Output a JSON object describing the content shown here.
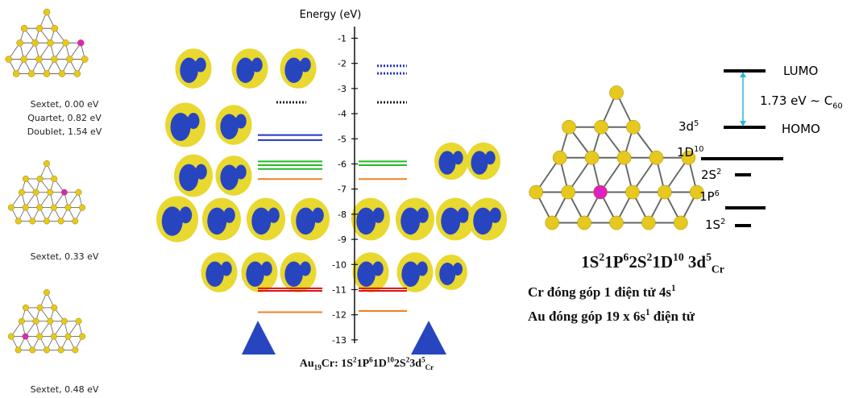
{
  "structures": [
    {
      "captions": [
        "Sextet, 0.00 eV",
        "Quartet, 0.82 eV",
        "Doublet, 1.54 eV"
      ]
    },
    {
      "captions": [
        "Sextet, 0.33 eV"
      ]
    },
    {
      "captions": [
        "Sextet, 0.48 eV"
      ]
    }
  ],
  "energy_diagram": {
    "axis_label": "Energy (eV)",
    "ylim": [
      -0.6,
      -13.1
    ],
    "ticks": [
      -1,
      -2,
      -3,
      -4,
      -5,
      -6,
      -7,
      -8,
      -9,
      -10,
      -11,
      -12,
      -13
    ],
    "levels": [
      {
        "side": "left",
        "energy": -3.55,
        "color": "#222222",
        "style": "dotted"
      },
      {
        "side": "left",
        "energy": -4.85,
        "color": "#2233cc",
        "style": "solid"
      },
      {
        "side": "left",
        "energy": -5.05,
        "color": "#2233cc",
        "style": "solid"
      },
      {
        "side": "left",
        "energy": -5.9,
        "color": "#22bb22",
        "style": "solid"
      },
      {
        "side": "left",
        "energy": -6.05,
        "color": "#22bb22",
        "style": "solid"
      },
      {
        "side": "left",
        "energy": -6.2,
        "color": "#22bb22",
        "style": "solid"
      },
      {
        "side": "left",
        "energy": -6.6,
        "color": "#f08020",
        "style": "solid"
      },
      {
        "side": "left",
        "energy": -10.95,
        "color": "#dd1111",
        "style": "solid"
      },
      {
        "side": "left",
        "energy": -11.05,
        "color": "#dd1111",
        "style": "solid"
      },
      {
        "side": "left",
        "energy": -11.9,
        "color": "#f08020",
        "style": "solid"
      },
      {
        "side": "right",
        "energy": -2.1,
        "color": "#2233cc",
        "style": "dotted"
      },
      {
        "side": "right",
        "energy": -2.4,
        "color": "#2233cc",
        "style": "dotted"
      },
      {
        "side": "right",
        "energy": -3.55,
        "color": "#222222",
        "style": "dotted"
      },
      {
        "side": "right",
        "energy": -5.9,
        "color": "#22bb22",
        "style": "solid"
      },
      {
        "side": "right",
        "energy": -6.05,
        "color": "#22bb22",
        "style": "solid"
      },
      {
        "side": "right",
        "energy": -6.6,
        "color": "#f08020",
        "style": "solid"
      },
      {
        "side": "right",
        "energy": -10.95,
        "color": "#dd1111",
        "style": "solid"
      },
      {
        "side": "right",
        "energy": -11.05,
        "color": "#dd1111",
        "style": "solid"
      },
      {
        "side": "right",
        "energy": -11.85,
        "color": "#f08020",
        "style": "solid"
      }
    ],
    "caption": [
      {
        "text": "Au"
      },
      {
        "sub": "19"
      },
      {
        "text": "Cr: 1S"
      },
      {
        "sup": "2"
      },
      {
        "text": "1P"
      },
      {
        "sup": "6"
      },
      {
        "text": "1D"
      },
      {
        "sup": "10"
      },
      {
        "text": "2S"
      },
      {
        "sup": "2"
      },
      {
        "text": "3d"
      },
      {
        "sup": "5"
      },
      {
        "sub": "Cr"
      }
    ]
  },
  "shell_diagram": {
    "lumo": "LUMO",
    "homo": "HOMO",
    "gap": [
      {
        "text": "1.73 eV ~ C"
      },
      {
        "sub": "60"
      }
    ],
    "shells": [
      [
        {
          "text": "3d"
        },
        {
          "sup": "5"
        }
      ],
      [
        {
          "text": "1D"
        },
        {
          "sup": "10"
        }
      ],
      [
        {
          "text": "2S"
        },
        {
          "sup": "2"
        }
      ],
      [
        {
          "text": "1P"
        },
        {
          "sup": "6"
        }
      ],
      [
        {
          "text": "1S"
        },
        {
          "sup": "2"
        }
      ]
    ],
    "configuration": [
      {
        "text": "1S"
      },
      {
        "sup": "2"
      },
      {
        "text": "1P"
      },
      {
        "sup": "6"
      },
      {
        "text": "2S"
      },
      {
        "sup": "2"
      },
      {
        "text": "1D"
      },
      {
        "sup": "10"
      },
      {
        "text": " 3d"
      },
      {
        "sup": "5"
      },
      {
        "sub": "Cr"
      }
    ],
    "notes": [
      [
        {
          "text": "Cr đóng góp 1 điện tử 4s"
        },
        {
          "sup": "1"
        }
      ],
      [
        {
          "text": "Au đóng góp 19 x 6s"
        },
        {
          "sup": "1"
        },
        {
          "text": " điện tử"
        }
      ]
    ]
  }
}
